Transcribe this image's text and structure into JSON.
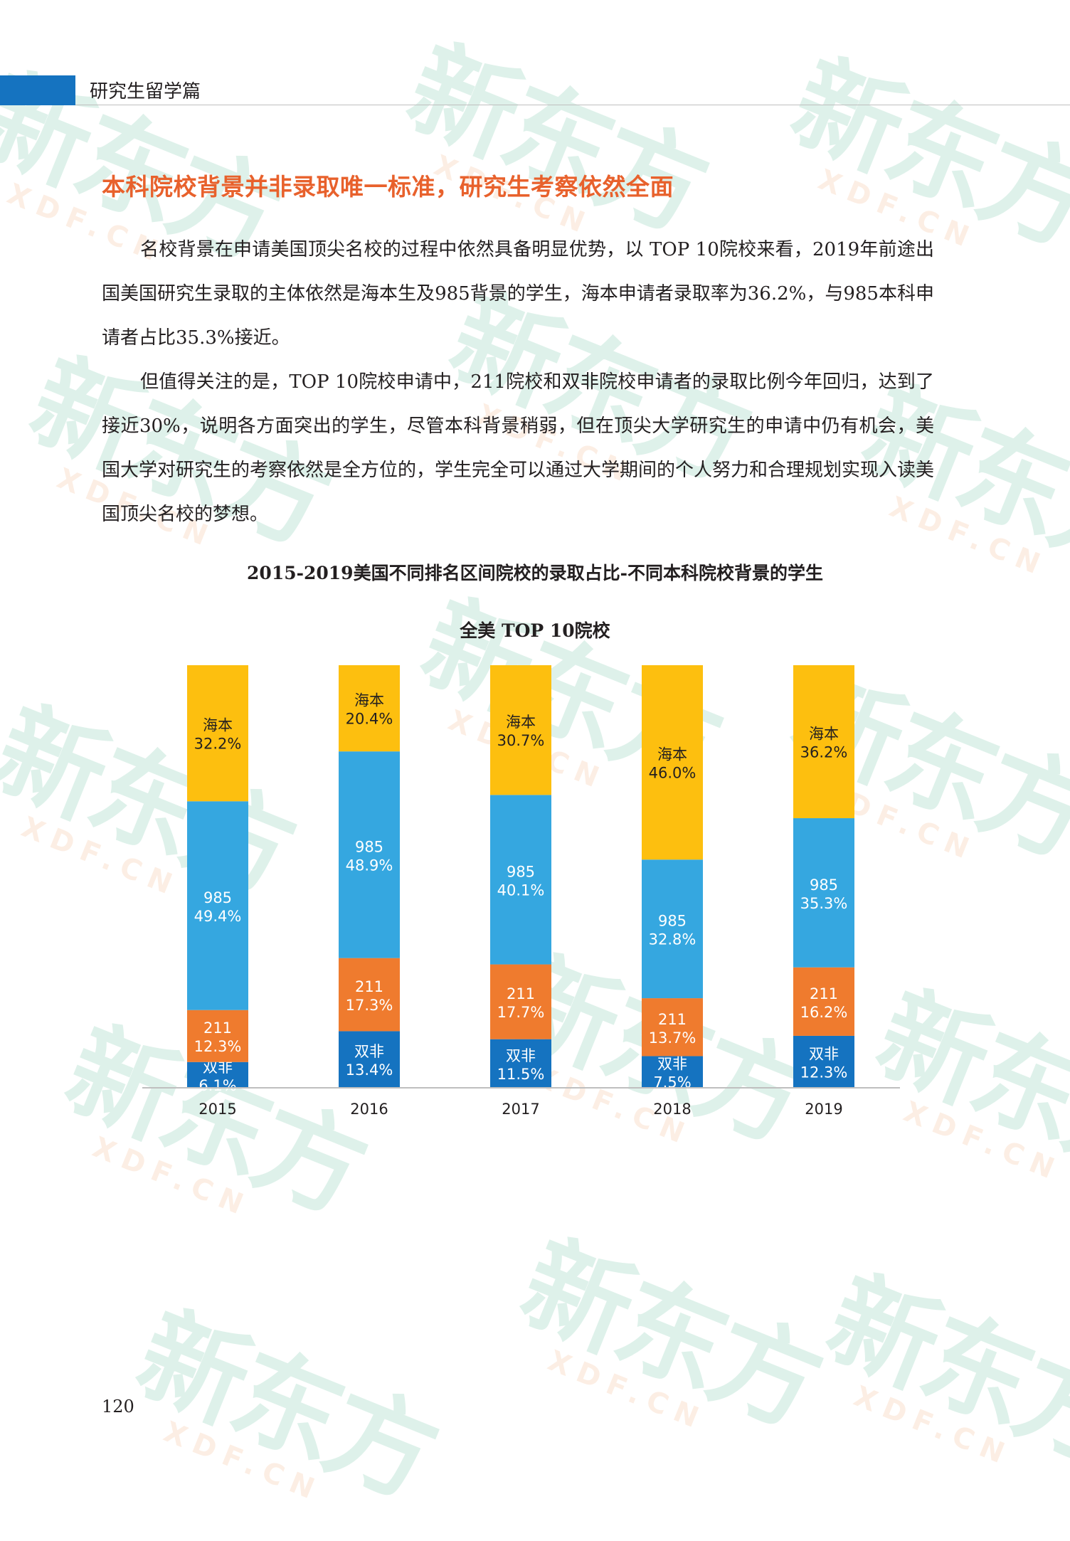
{
  "header": {
    "section": "研究生留学篇"
  },
  "article": {
    "heading": "本科院校背景并非录取唯一标准，研究生考察依然全面",
    "paragraphs": [
      "名校背景在申请美国顶尖名校的过程中依然具备明显优势，以 TOP 10院校来看，2019年前途出国美国研究生录取的主体依然是海本生及985背景的学生，海本申请者录取率为36.2%，与985本科申请者占比35.3%接近。",
      "但值得关注的是，TOP 10院校申请中，211院校和双非院校申请者的录取比例今年回归，达到了接近30%，说明各方面突出的学生，尽管本科背景稍弱，但在顶尖大学研究生的申请中仍有机会，美国大学对研究生的考察依然是全方位的，学生完全可以通过大学期间的个人努力和合理规划实现入读美国顶尖名校的梦想。"
    ]
  },
  "figure_title": "2015-2019美国不同排名区间院校的录取占比-不同本科院校背景的学生",
  "page_number": "120",
  "watermark": {
    "big": "新东方",
    "small": "XDF.CN"
  },
  "chart_data": {
    "type": "bar",
    "stacked": true,
    "title": "全美 TOP 10院校",
    "categories": [
      "2015",
      "2016",
      "2017",
      "2018",
      "2019"
    ],
    "series": [
      {
        "name": "双非",
        "color": "#1573c0",
        "values": [
          6.1,
          13.4,
          11.5,
          7.5,
          12.3
        ]
      },
      {
        "name": "211",
        "color": "#ef7b2e",
        "values": [
          12.3,
          17.3,
          17.7,
          13.7,
          16.2
        ]
      },
      {
        "name": "985",
        "color": "#35a7e0",
        "values": [
          49.4,
          48.9,
          40.1,
          32.8,
          35.3
        ]
      },
      {
        "name": "海本",
        "color": "#fdbf0f",
        "values": [
          32.2,
          20.4,
          30.7,
          46.0,
          36.2
        ]
      }
    ],
    "value_labels": [
      [
        "6.1%",
        "13.4%",
        "11.5%",
        "7.5%",
        "12.3%"
      ],
      [
        "12.3%",
        "17.3%",
        "17.7%",
        "13.7%",
        "16.2%"
      ],
      [
        "49.4%",
        "48.9%",
        "40.1%",
        "32.8%",
        "35.3%"
      ],
      [
        "32.2%",
        "20.4%",
        "30.7%",
        "46.0%",
        "36.2%"
      ]
    ],
    "label_colors": [
      "#ffffff",
      "#ffffff",
      "#ffffff",
      "#231f20"
    ],
    "ylim": [
      0,
      100
    ],
    "grid": false,
    "legend": "none"
  }
}
